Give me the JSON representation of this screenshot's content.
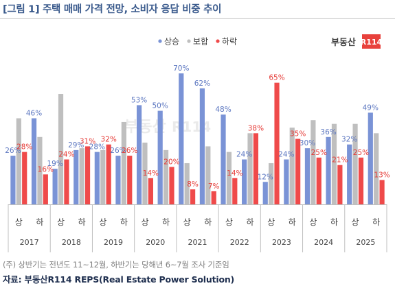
{
  "title": "[그림 1] 주택 매매 가격 전망, 소비자 응답 비중 추이",
  "note": "(주) 상반기는 전년도 11~12월, 하반기는 당해년 6~7월 조사 기준임",
  "source": "자료: 부동산R114 REPS(Real Estate Power Solution)",
  "logo": {
    "text_main": "부동산",
    "text_badge": "R114",
    "badge_color": "#e8413c",
    "text_color": "#404040"
  },
  "colors": {
    "up": "#7a93d6",
    "mixed": "#bfbfbf",
    "down": "#ef4a4a",
    "up_label": "#5b76c0",
    "down_label": "#e53935"
  },
  "chart_data": {
    "type": "bar",
    "title": "주택 매매 가격 전망, 소비자 응답 비중 추이",
    "legend_position": "top-right",
    "grid": false,
    "ylim": [
      0,
      75
    ],
    "years": [
      "2017",
      "2018",
      "2019",
      "2020",
      "2021",
      "2022",
      "2023",
      "2024",
      "2025"
    ],
    "categories": [
      "상",
      "하",
      "상",
      "하",
      "상",
      "하",
      "상",
      "하",
      "상",
      "하",
      "상",
      "하",
      "상",
      "하",
      "상",
      "하",
      "상",
      "하"
    ],
    "series": [
      {
        "name": "상승",
        "values": [
          26,
          46,
          19,
          29,
          28,
          26,
          53,
          50,
          70,
          62,
          48,
          24,
          12,
          24,
          30,
          36,
          32,
          49
        ]
      },
      {
        "name": "보합",
        "values": [
          46,
          36,
          59,
          30,
          29,
          44,
          33,
          29,
          22,
          31,
          28,
          38,
          22,
          41,
          45,
          43,
          43,
          38
        ]
      },
      {
        "name": "하락",
        "values": [
          28,
          16,
          24,
          31,
          32,
          26,
          14,
          20,
          8,
          7,
          14,
          38,
          65,
          35,
          25,
          21,
          25,
          13
        ]
      }
    ],
    "value_labels": {
      "상승": [
        "26%",
        "46%",
        "19%",
        "29%",
        "28%",
        "26%",
        "53%",
        "50%",
        "70%",
        "62%",
        "48%",
        "24%",
        "12%",
        "24%",
        "30%",
        "36%",
        "32%",
        "49%"
      ],
      "하락": [
        "28%",
        "16%",
        "24%",
        "31%",
        "32%",
        "26%",
        "14%",
        "20%",
        "8%",
        "7%",
        "14%",
        "38%",
        "65%",
        "35%",
        "25%",
        "21%",
        "25%",
        "13%"
      ]
    }
  }
}
